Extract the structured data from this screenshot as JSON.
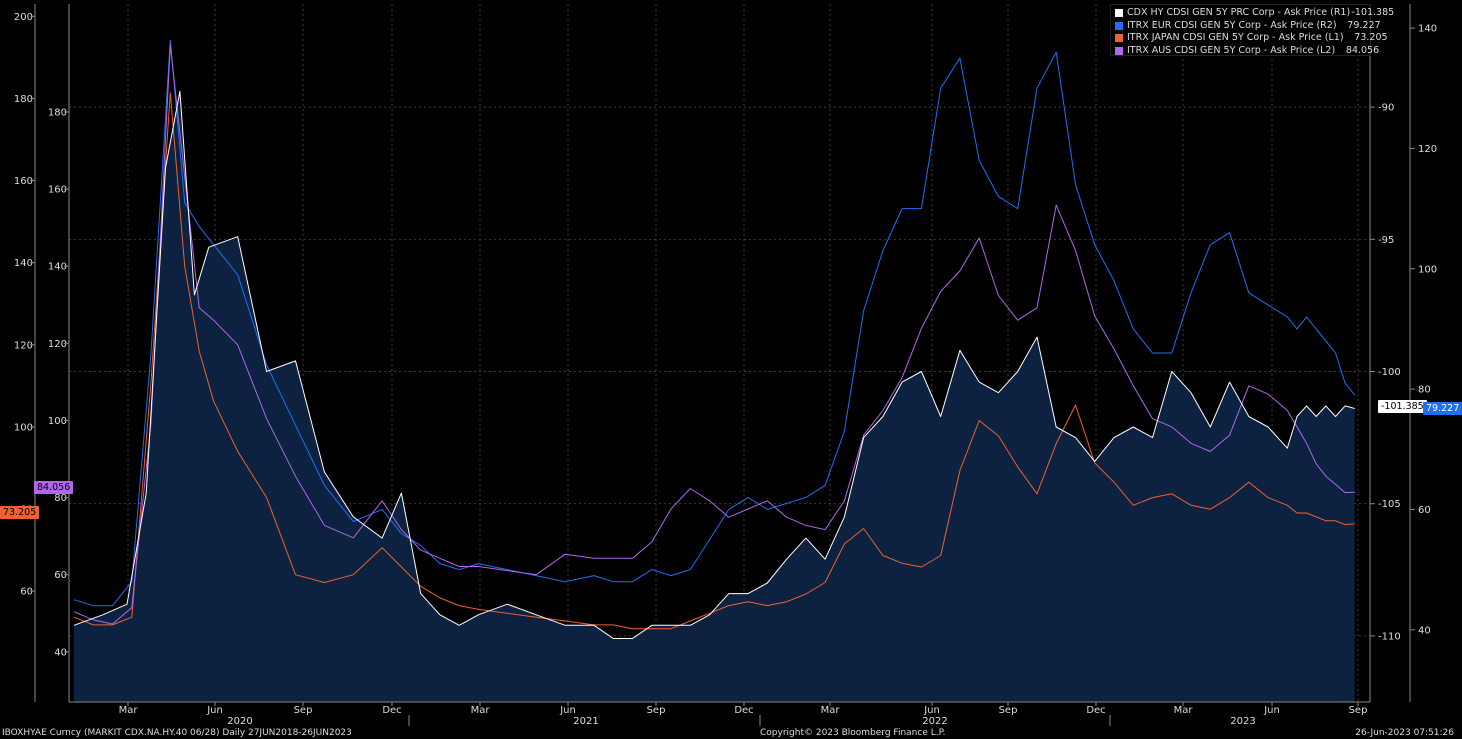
{
  "chart_data": {
    "type": "line",
    "legend": "top-right",
    "grid": true,
    "x_ticks": [
      "Mar",
      "Jun",
      "Sep",
      "Dec",
      "Mar",
      "Jun",
      "Sep",
      "Dec",
      "Mar",
      "Jun",
      "Sep",
      "Dec",
      "Mar",
      "Jun",
      "Sep"
    ],
    "years": [
      "2020",
      "2021",
      "2022",
      "2023"
    ],
    "axes": {
      "L1": {
        "ticks": [
          "40",
          "60",
          "80",
          "100",
          "120",
          "140",
          "160",
          "180"
        ],
        "ylim": [
          27,
          208
        ]
      },
      "L2": {
        "ticks": [
          "60",
          "80",
          "100",
          "120",
          "140",
          "160",
          "180",
          "200"
        ],
        "ylim": [
          33,
          203
        ]
      },
      "R1": {
        "ticks": [
          "-90",
          "-95",
          "-100",
          "-105",
          "-110"
        ],
        "ylim": [
          -112.5,
          -86.1
        ]
      },
      "R2": {
        "ticks": [
          "40",
          "60",
          "80",
          "100",
          "120",
          "140"
        ],
        "ylim": [
          28,
          144
        ]
      }
    },
    "series": [
      {
        "name": "CDX HY CDSI GEN 5Y PRC Corp - Ask Price (R1)",
        "last": "-101.385",
        "color": "#ffffff",
        "axis": "R1",
        "x": [
          0,
          30,
          55,
          75,
          95,
          110,
          125,
          140,
          170,
          200,
          230,
          260,
          290,
          320,
          340,
          360,
          380,
          400,
          420,
          450,
          480,
          510,
          540,
          560,
          580,
          600,
          620,
          640,
          660,
          680,
          700,
          720,
          740,
          760,
          780,
          800,
          820,
          840,
          860,
          880,
          900,
          920,
          940,
          960,
          980,
          1000,
          1020,
          1040,
          1060,
          1080,
          1100,
          1120,
          1140,
          1160,
          1180,
          1200,
          1220,
          1240,
          1260,
          1270,
          1280,
          1290,
          1300,
          1310,
          1320,
          1330
        ],
        "y": [
          -109.6,
          -109.2,
          -108.8,
          -104.6,
          -92.3,
          -89.4,
          -97.1,
          -95.3,
          -94.9,
          -100.0,
          -99.6,
          -103.8,
          -105.5,
          -106.3,
          -104.6,
          -108.4,
          -109.2,
          -109.6,
          -109.2,
          -108.8,
          -109.2,
          -109.6,
          -109.6,
          -110.1,
          -110.1,
          -109.6,
          -109.6,
          -109.6,
          -109.2,
          -108.4,
          -108.4,
          -108.0,
          -107.1,
          -106.3,
          -107.1,
          -105.5,
          -102.5,
          -101.7,
          -100.4,
          -100.0,
          -101.7,
          -99.2,
          -100.4,
          -100.8,
          -100.0,
          -98.7,
          -102.1,
          -102.5,
          -103.4,
          -102.5,
          -102.1,
          -102.5,
          -100.0,
          -100.8,
          -102.1,
          -100.4,
          -101.7,
          -102.1,
          -102.9,
          -101.7,
          -101.3,
          -101.7,
          -101.3,
          -101.7,
          -101.3,
          -101.4
        ]
      },
      {
        "name": "ITRX EUR CDSI GEN 5Y Corp - Ask Price (R2)",
        "last": "79.227",
        "color": "#1f6ff5",
        "axis": "R2",
        "x": [
          0,
          20,
          40,
          60,
          80,
          100,
          115,
          130,
          145,
          170,
          200,
          230,
          260,
          290,
          320,
          340,
          360,
          380,
          400,
          420,
          450,
          480,
          510,
          540,
          560,
          580,
          600,
          620,
          640,
          660,
          680,
          700,
          720,
          740,
          760,
          780,
          800,
          820,
          840,
          860,
          880,
          900,
          920,
          940,
          960,
          980,
          1000,
          1020,
          1040,
          1060,
          1080,
          1100,
          1120,
          1140,
          1160,
          1180,
          1200,
          1220,
          1240,
          1260,
          1270,
          1280,
          1290,
          1300,
          1310,
          1320,
          1330
        ],
        "y": [
          45,
          44,
          44,
          48,
          86,
          138,
          111,
          107,
          104,
          99,
          84,
          74,
          64,
          58,
          60,
          56,
          54,
          51,
          50,
          51,
          50,
          49,
          48,
          49,
          48,
          48,
          50,
          49,
          50,
          55,
          60,
          62,
          60,
          61,
          62,
          64,
          73,
          93,
          103,
          110,
          110,
          130,
          135,
          118,
          112,
          110,
          130,
          136,
          114,
          104,
          98,
          90,
          86,
          86,
          96,
          104,
          106,
          96,
          94,
          92,
          90,
          92,
          90,
          88,
          86,
          81,
          79
        ]
      },
      {
        "name": "ITRX JAPAN CDSI GEN 5Y Corp - Ask Price (L1)",
        "last": "73.205",
        "color": "#f06030",
        "axis": "L1",
        "x": [
          0,
          20,
          40,
          60,
          80,
          100,
          115,
          130,
          145,
          170,
          200,
          230,
          260,
          290,
          320,
          340,
          360,
          380,
          400,
          420,
          450,
          480,
          510,
          540,
          560,
          580,
          600,
          620,
          640,
          660,
          680,
          700,
          720,
          740,
          760,
          780,
          800,
          820,
          840,
          860,
          880,
          900,
          920,
          940,
          960,
          980,
          1000,
          1020,
          1040,
          1060,
          1080,
          1100,
          1120,
          1140,
          1160,
          1180,
          1200,
          1220,
          1240,
          1260,
          1270,
          1280,
          1290,
          1300,
          1310,
          1320,
          1330
        ],
        "y": [
          49,
          47,
          47,
          49,
          110,
          185,
          140,
          118,
          105,
          92,
          80,
          60,
          58,
          60,
          67,
          62,
          57,
          54,
          52,
          51,
          50,
          49,
          48,
          47,
          47,
          46,
          46,
          46,
          48,
          50,
          52,
          53,
          52,
          53,
          55,
          58,
          68,
          72,
          65,
          63,
          62,
          65,
          87,
          100,
          96,
          88,
          81,
          94,
          104,
          89,
          84,
          78,
          80,
          81,
          78,
          77,
          80,
          84,
          80,
          78,
          76,
          76,
          75,
          74,
          74,
          73,
          73.2
        ]
      },
      {
        "name": "ITRX AUS CDSI GEN 5Y Corp - Ask Price (L2)",
        "last": "84.056",
        "color": "#b067ec",
        "axis": "L2",
        "x": [
          0,
          20,
          40,
          60,
          80,
          100,
          115,
          130,
          145,
          170,
          200,
          230,
          260,
          290,
          320,
          340,
          360,
          380,
          400,
          420,
          450,
          480,
          510,
          540,
          560,
          580,
          600,
          620,
          640,
          660,
          680,
          700,
          720,
          740,
          760,
          780,
          800,
          820,
          840,
          860,
          880,
          900,
          920,
          940,
          960,
          980,
          1000,
          1020,
          1040,
          1060,
          1080,
          1100,
          1120,
          1140,
          1160,
          1180,
          1200,
          1220,
          1240,
          1260,
          1270,
          1280,
          1290,
          1300,
          1310,
          1320,
          1330
        ],
        "y": [
          55,
          53,
          52,
          56,
          101,
          193,
          161,
          129,
          126,
          120,
          102,
          88,
          76,
          73,
          82,
          75,
          70,
          68,
          66,
          66,
          65,
          64,
          69,
          68,
          68,
          68,
          72,
          80,
          85,
          82,
          78,
          80,
          82,
          78,
          76,
          75,
          82,
          98,
          104,
          112,
          124,
          133,
          138,
          146,
          132,
          126,
          129,
          154,
          143,
          127,
          119,
          110,
          102,
          100,
          96,
          94,
          98,
          110,
          108,
          104,
          100,
          96,
          91,
          88,
          86,
          84,
          84.1
        ]
      }
    ]
  },
  "footer": {
    "left": "IBOXHYAE Curncy (MARKIT CDX.NA.HY.40 06/28)  Daily 27JUN2018-26JUN2023",
    "center": "Copyright© 2023 Bloomberg Finance L.P.",
    "right": "26-Jun-2023 07:51:26"
  },
  "value_tags": {
    "l1": "73.205",
    "l2": "84.056",
    "r1": "-101.385",
    "r2": "79.227"
  }
}
